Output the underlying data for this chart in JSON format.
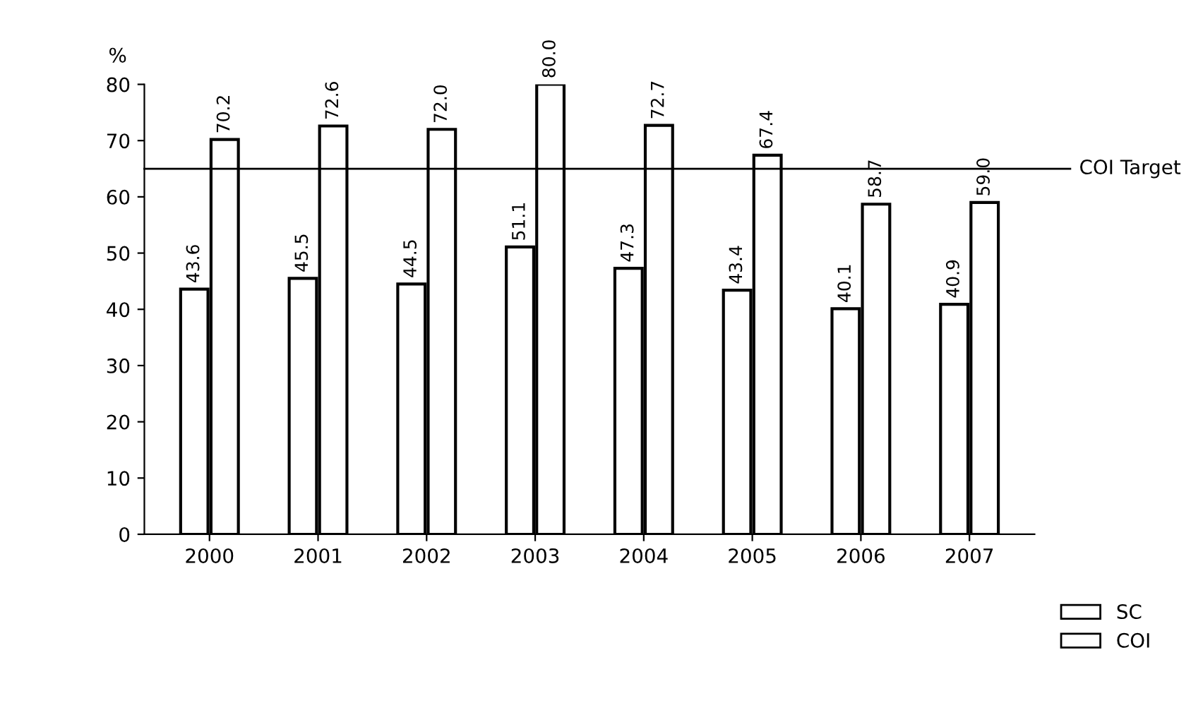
{
  "chart_data": {
    "type": "bar",
    "ylabel": "%",
    "categories": [
      "2000",
      "2001",
      "2002",
      "2003",
      "2004",
      "2005",
      "2006",
      "2007"
    ],
    "series": [
      {
        "name": "SC",
        "color": "#ffffff",
        "values": [
          43.6,
          45.5,
          44.5,
          51.1,
          47.3,
          43.4,
          40.1,
          40.9
        ],
        "value_labels": [
          "43.6",
          "45.5",
          "44.5",
          "51.1",
          "47.3",
          "43.4",
          "40.1",
          "40.9"
        ]
      },
      {
        "name": "COI",
        "color": "#ffffff",
        "values": [
          70.2,
          72.6,
          72.0,
          80.0,
          72.7,
          67.4,
          58.7,
          59.0
        ],
        "value_labels": [
          "70.2",
          "72.6",
          "72.0",
          "80.0",
          "72.7",
          "67.4",
          "58.7",
          "59.0"
        ]
      }
    ],
    "ylim": [
      0,
      80
    ],
    "yticks": [
      0,
      10,
      20,
      30,
      40,
      50,
      60,
      70,
      80
    ],
    "ref_lines": [
      {
        "axis": "y",
        "value": 65,
        "label": "COI Target",
        "color": "#000000"
      }
    ],
    "grid": false,
    "legend": "bottom right"
  }
}
